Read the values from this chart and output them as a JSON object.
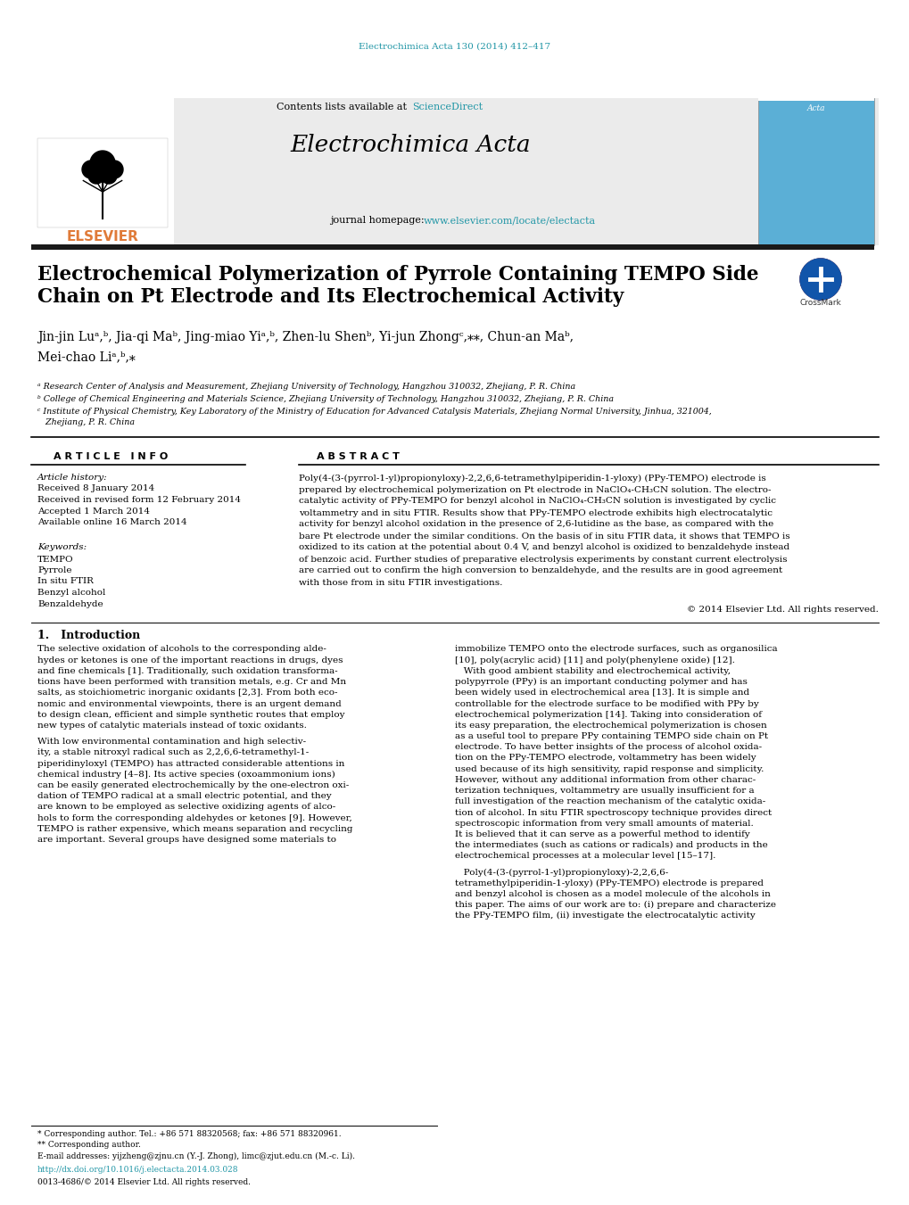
{
  "journal_cite": "Electrochimica Acta 130 (2014) 412–417",
  "contents_text": "Contents lists available at ",
  "sciencedirect_text": "ScienceDirect",
  "journal_name": "Electrochimica Acta",
  "homepage_prefix": "journal homepage: ",
  "homepage_url": "www.elsevier.com/locate/electacta",
  "title_line1": "Electrochemical Polymerization of Pyrrole Containing TEMPO Side",
  "title_line2": "Chain on Pt Electrode and Its Electrochemical Activity",
  "author_line1": "Jin-jin Luᵃ,ᵇ, Jia-qi Maᵇ, Jing-miao Yiᵃ,ᵇ, Zhen-lu Shenᵇ, Yi-jun Zhongᶜ,⁎⁎, Chun-an Maᵇ,",
  "author_line2": "Mei-chao Liᵃ,ᵇ,⁎",
  "affil_a": "ᵃ Research Center of Analysis and Measurement, Zhejiang University of Technology, Hangzhou 310032, Zhejiang, P. R. China",
  "affil_b": "ᵇ College of Chemical Engineering and Materials Science, Zhejiang University of Technology, Hangzhou 310032, Zhejiang, P. R. China",
  "affil_c1": "ᶜ Institute of Physical Chemistry, Key Laboratory of the Ministry of Education for Advanced Catalysis Materials, Zhejiang Normal University, Jinhua, 321004,",
  "affil_c2": "   Zhejiang, P. R. China",
  "article_info_title": "A R T I C L E   I N F O",
  "abstract_title": "A B S T R A C T",
  "history_label": "Article history:",
  "history_lines": [
    "Received 8 January 2014",
    "Received in revised form 12 February 2014",
    "Accepted 1 March 2014",
    "Available online 16 March 2014"
  ],
  "keywords_label": "Keywords:",
  "keywords": [
    "TEMPO",
    "Pyrrole",
    "In situ FTIR",
    "Benzyl alcohol",
    "Benzaldehyde"
  ],
  "abstract_lines": [
    "Poly(4-(3-(pyrrol-1-yl)propionyloxy)-2,2,6,6-tetramethylpiperidin-1-yloxy) (PPy-TEMPO) electrode is",
    "prepared by electrochemical polymerization on Pt electrode in NaClO₄-CH₃CN solution. The electro-",
    "catalytic activity of PPy-TEMPO for benzyl alcohol in NaClO₄-CH₃CN solution is investigated by cyclic",
    "voltammetry and in situ FTIR. Results show that PPy-TEMPO electrode exhibits high electrocatalytic",
    "activity for benzyl alcohol oxidation in the presence of 2,6-lutidine as the base, as compared with the",
    "bare Pt electrode under the similar conditions. On the basis of in situ FTIR data, it shows that TEMPO is",
    "oxidized to its cation at the potential about 0.4 V, and benzyl alcohol is oxidized to benzaldehyde instead",
    "of benzoic acid. Further studies of preparative electrolysis experiments by constant current electrolysis",
    "are carried out to confirm the high conversion to benzaldehyde, and the results are in good agreement",
    "with those from in situ FTIR investigations."
  ],
  "copyright_text": "© 2014 Elsevier Ltd. All rights reserved.",
  "intro_title": "1.   Introduction",
  "left_col_para1": [
    "The selective oxidation of alcohols to the corresponding alde-",
    "hydes or ketones is one of the important reactions in drugs, dyes",
    "and fine chemicals [1]. Traditionally, such oxidation transforma-",
    "tions have been performed with transition metals, e.g. Cr and Mn",
    "salts, as stoichiometric inorganic oxidants [2,3]. From both eco-",
    "nomic and environmental viewpoints, there is an urgent demand",
    "to design clean, efficient and simple synthetic routes that employ",
    "new types of catalytic materials instead of toxic oxidants."
  ],
  "left_col_para2": [
    "With low environmental contamination and high selectiv-",
    "ity, a stable nitroxyl radical such as 2,2,6,6-tetramethyl-1-",
    "piperidinyloxyl (TEMPO) has attracted considerable attentions in",
    "chemical industry [4–8]. Its active species (oxoammonium ions)",
    "can be easily generated electrochemically by the one-electron oxi-",
    "dation of TEMPO radical at a small electric potential, and they",
    "are known to be employed as selective oxidizing agents of alco-",
    "hols to form the corresponding aldehydes or ketones [9]. However,",
    "TEMPO is rather expensive, which means separation and recycling",
    "are important. Several groups have designed some materials to"
  ],
  "right_col_para1": [
    "immobilize TEMPO onto the electrode surfaces, such as organosilica",
    "[10], poly(acrylic acid) [11] and poly(phenylene oxide) [12].",
    "   With good ambient stability and electrochemical activity,",
    "polypyrrole (PPy) is an important conducting polymer and has",
    "been widely used in electrochemical area [13]. It is simple and",
    "controllable for the electrode surface to be modified with PPy by",
    "electrochemical polymerization [14]. Taking into consideration of",
    "its easy preparation, the electrochemical polymerization is chosen",
    "as a useful tool to prepare PPy containing TEMPO side chain on Pt",
    "electrode. To have better insights of the process of alcohol oxida-",
    "tion on the PPy-TEMPO electrode, voltammetry has been widely",
    "used because of its high sensitivity, rapid response and simplicity.",
    "However, without any additional information from other charac-",
    "terization techniques, voltammetry are usually insufficient for a",
    "full investigation of the reaction mechanism of the catalytic oxida-",
    "tion of alcohol. In situ FTIR spectroscopy technique provides direct",
    "spectroscopic information from very small amounts of material.",
    "It is believed that it can serve as a powerful method to identify",
    "the intermediates (such as cations or radicals) and products in the",
    "electrochemical processes at a molecular level [15–17]."
  ],
  "right_col_para2": [
    "   Poly(4-(3-(pyrrol-1-yl)propionyloxy)-2,2,6,6-",
    "tetramethylpiperidin-1-yloxy) (PPy-TEMPO) electrode is prepared",
    "and benzyl alcohol is chosen as a model molecule of the alcohols in",
    "this paper. The aims of our work are to: (i) prepare and characterize",
    "the PPy-TEMPO film, (ii) investigate the electrocatalytic activity"
  ],
  "footnote1": "* Corresponding author. Tel.: +86 571 88320568; fax: +86 571 88320961.",
  "footnote2": "** Corresponding author.",
  "email_text": "E-mail addresses: yijzheng@zjnu.cn (Y.-J. Zhong), limc@zjut.edu.cn (M.-c. Li).",
  "doi_text": "http://dx.doi.org/10.1016/j.electacta.2014.03.028",
  "issn_text": "0013-4686/© 2014 Elsevier Ltd. All rights reserved.",
  "bg_color": "#ffffff",
  "teal_color": "#2196a6",
  "orange_color": "#e07b39",
  "text_color": "#000000",
  "link_color": "#2196a6",
  "header_bg": "#ebebeb",
  "dark_bar": "#1a1a1a",
  "cover_blue": "#5bafd6"
}
